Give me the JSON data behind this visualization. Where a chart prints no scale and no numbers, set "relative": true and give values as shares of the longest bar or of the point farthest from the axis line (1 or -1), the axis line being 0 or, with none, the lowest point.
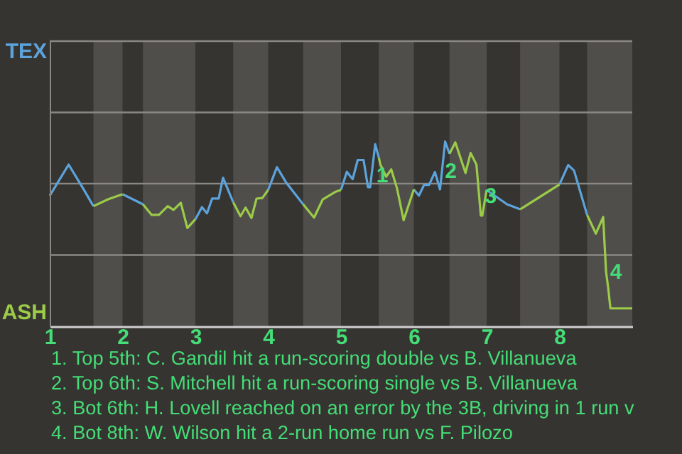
{
  "chart_data": {
    "type": "line",
    "relative": true,
    "xlim": [
      1,
      9
    ],
    "xticks": [
      1,
      2,
      3,
      4,
      5,
      6,
      7,
      8
    ],
    "ref_lines": [
      {
        "axis": "y",
        "value": 0.386,
        "color": "#8a8884",
        "line_style": "solid"
      },
      {
        "axis": "y",
        "value": 0.772,
        "color": "#8a8884",
        "line_style": "solid"
      },
      {
        "axis": "y",
        "value": 1.157,
        "color": "#8a8884",
        "line_style": "solid"
      },
      {
        "axis": "y",
        "value": 1.543,
        "color": "#8a8884",
        "line_style": "solid"
      }
    ],
    "line_style": "solid",
    "series": [
      {
        "name": "TEX",
        "color": "#5ca3dc",
        "x": [
          1.0,
          1.26,
          1.46,
          1.6,
          1.8,
          2.0,
          2.28,
          2.6,
          3.0,
          3.09,
          3.16,
          3.23,
          3.32,
          3.38,
          3.52,
          3.8,
          4.0,
          4.12,
          4.25,
          4.48,
          4.7,
          5.0,
          5.08,
          5.16,
          5.23,
          5.31,
          5.37,
          5.4,
          5.47,
          5.52,
          5.8,
          6.0,
          6.07,
          6.14,
          6.21,
          6.29,
          6.36,
          6.43,
          6.49,
          6.7,
          7.0,
          7.28,
          7.46,
          7.7,
          8.0,
          8.12,
          8.2,
          8.38
        ],
        "values": [
          0.707,
          0.875,
          0.745,
          0.65,
          null,
          0.715,
          0.66,
          null,
          0.579,
          0.645,
          0.611,
          0.691,
          0.691,
          0.804,
          0.671,
          null,
          0.738,
          0.861,
          0.776,
          0.66,
          null,
          0.738,
          0.836,
          0.796,
          0.9,
          0.9,
          0.753,
          0.753,
          0.985,
          0.912,
          null,
          0.741,
          0.707,
          0.765,
          0.765,
          0.835,
          0.741,
          1.0,
          0.934,
          null,
          0.738,
          0.66,
          0.633,
          null,
          0.767,
          0.873,
          0.843,
          0.602
        ]
      },
      {
        "name": "ASH",
        "color": "#9bcb48",
        "x": [
          1.6,
          1.8,
          2.0,
          2.1,
          2.28,
          2.4,
          2.5,
          2.62,
          2.7,
          2.8,
          2.89,
          3.0,
          3.2,
          3.52,
          3.62,
          3.69,
          3.77,
          3.84,
          3.92,
          4.0,
          4.2,
          4.48,
          4.63,
          4.75,
          4.92,
          5.0,
          5.2,
          5.52,
          5.54,
          5.62,
          5.69,
          5.77,
          5.86,
          6.0,
          6.2,
          6.49,
          6.57,
          6.71,
          6.78,
          6.86,
          6.92,
          6.94,
          7.0,
          7.2,
          7.46,
          8.0,
          8.2,
          8.38,
          8.5,
          8.6,
          8.64,
          8.67,
          8.7,
          9.0
        ],
        "values": [
          0.65,
          0.687,
          0.715,
          null,
          0.66,
          0.603,
          0.603,
          0.65,
          0.63,
          0.668,
          0.532,
          0.579,
          null,
          0.671,
          0.596,
          0.642,
          0.586,
          0.691,
          0.694,
          0.738,
          null,
          0.66,
          0.588,
          0.687,
          0.727,
          0.738,
          null,
          0.912,
          0.875,
          0.81,
          0.849,
          0.745,
          0.574,
          0.741,
          null,
          0.934,
          0.995,
          0.83,
          0.938,
          0.875,
          0.599,
          0.599,
          0.738,
          null,
          0.633,
          0.767,
          null,
          0.602,
          0.502,
          0.591,
          0.295,
          0.205,
          0.097,
          0.097
        ]
      }
    ],
    "bands": [
      {
        "axis": "x",
        "from": 1.6,
        "to": 2,
        "color": "#504e4b"
      },
      {
        "axis": "x",
        "from": 2.28,
        "to": 3,
        "color": "#504e4b"
      },
      {
        "axis": "x",
        "from": 3.52,
        "to": 4,
        "color": "#504e4b"
      },
      {
        "axis": "x",
        "from": 4.48,
        "to": 5,
        "color": "#504e4b"
      },
      {
        "axis": "x",
        "from": 5.52,
        "to": 6,
        "color": "#504e4b"
      },
      {
        "axis": "x",
        "from": 6.49,
        "to": 7,
        "color": "#504e4b"
      },
      {
        "axis": "x",
        "from": 7.46,
        "to": 8,
        "color": "#504e4b"
      },
      {
        "axis": "x",
        "from": 8.38,
        "to": 9,
        "color": "#504e4b"
      }
    ],
    "annotations": [
      {
        "text": "1",
        "x": 5.47,
        "y": 0.985
      },
      {
        "text": "2",
        "x": 6.43,
        "y": 1.0
      },
      {
        "text": "3",
        "x": 6.92,
        "y": 0.599
      },
      {
        "text": "4",
        "x": 8.64,
        "y": 0.295
      },
      "1. Top 5th: C. Gandil hit a run-scoring double vs B. Villanueva",
      "2. Top 6th: S. Mitchell hit a run-scoring single vs B. Villanueva",
      "3. Bot 6th: H. Lovell reached on an error by the 3B, driving in 1 run v",
      "4. Bot 8th: W. Wilson hit a 2-run home run vs F. Pilozo"
    ]
  }
}
